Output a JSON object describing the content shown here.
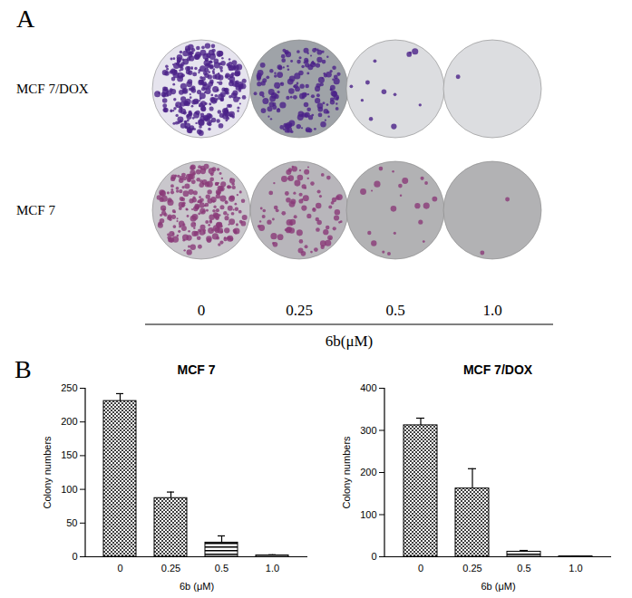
{
  "panel_labels": [
    "A",
    "B"
  ],
  "panel_a": {
    "rows": [
      "MCF 7/DOX",
      "MCF 7"
    ],
    "columns": [
      "0",
      "0.25",
      "0.5",
      "1.0"
    ],
    "axis_label": "6b(μM)"
  },
  "chart_data": [
    {
      "type": "bar",
      "title": "MCF 7",
      "categories": [
        "0",
        "0.25",
        "0.5",
        "1.0"
      ],
      "values": [
        231,
        87,
        21,
        2
      ],
      "errors": [
        11,
        9,
        10,
        1
      ],
      "x_label": "6b (μM)",
      "y_label": "Colony numbers",
      "color": "#000000",
      "ylim": [
        0,
        250
      ],
      "yticks": [
        0,
        50,
        100,
        150,
        200,
        250
      ],
      "grid": false,
      "data_labels": false
    },
    {
      "type": "bar",
      "title": "MCF 7/DOX",
      "categories": [
        "0",
        "0.25",
        "0.5",
        "1.0"
      ],
      "values": [
        312,
        162,
        12,
        1
      ],
      "errors": [
        17,
        47,
        3,
        1
      ],
      "x_label": "6b (μM)",
      "y_label": "Colony numbers",
      "color": "#000000",
      "ylim": [
        0,
        400
      ],
      "yticks": [
        0,
        100,
        200,
        300,
        400
      ],
      "grid": false,
      "data_labels": false
    }
  ]
}
